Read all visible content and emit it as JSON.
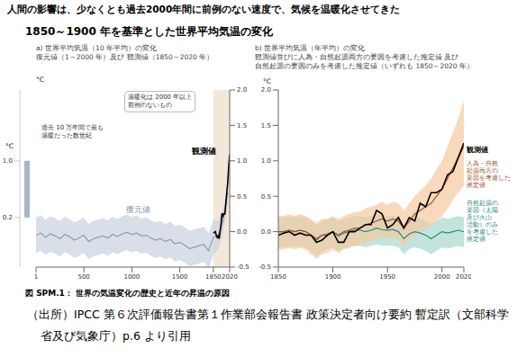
{
  "title": "人間の影響は、少なくとも過去2000年間に前例のない速度で、気候を温暖化させてきた",
  "subtitle": "1850～1900 年を基準とした世界平均気温の変化",
  "caption": "図 SPM.1： 世界の気温変化の歴史と近年の昇温の原因",
  "source": "（出所）IPCC 第６次評価報告書第１作業部会報告書 政策決定者向け要約 暫定訳（文部科学省及び気象庁）p.6 より引用",
  "chart_data": [
    {
      "type": "line",
      "title": "a) 世界平均気温（10 年平均）の変化",
      "subtitle": "復元値（1～2000 年）及び 観測値（1850～2020 年）",
      "y_label": "°C",
      "xlim": [
        1,
        2020
      ],
      "xticks": [
        1,
        500,
        1000,
        1500,
        1850,
        2020
      ],
      "ylim": [
        -0.5,
        2
      ],
      "yticks": [
        -0.5,
        {
          "value": 0,
          "label": "0.0"
        },
        0.5,
        {
          "value": 1,
          "label": "1.0"
        },
        1.5,
        {
          "value": 2,
          "label": "2.0"
        }
      ],
      "grid": false,
      "shaded_range": [
        1850,
        2020
      ],
      "series": [
        {
          "name": "復元値",
          "color": "#8c9db3",
          "band_color": "#c9d2de",
          "x": [
            1,
            50,
            100,
            150,
            200,
            250,
            300,
            350,
            400,
            450,
            500,
            550,
            600,
            650,
            700,
            750,
            800,
            850,
            900,
            950,
            1000,
            1050,
            1100,
            1150,
            1200,
            1250,
            1300,
            1350,
            1400,
            1450,
            1500,
            1550,
            1600,
            1650,
            1700,
            1750,
            1800,
            1850,
            1900,
            1950,
            2000
          ],
          "values": [
            -0.05,
            -0.02,
            -0.08,
            -0.03,
            -0.06,
            -0.1,
            -0.04,
            -0.07,
            -0.12,
            -0.09,
            -0.05,
            -0.14,
            -0.1,
            -0.08,
            -0.06,
            -0.09,
            -0.04,
            -0.07,
            -0.03,
            -0.01,
            -0.04,
            -0.02,
            -0.06,
            -0.05,
            -0.09,
            -0.12,
            -0.1,
            -0.14,
            -0.11,
            -0.17,
            -0.15,
            -0.19,
            -0.24,
            -0.22,
            -0.2,
            -0.18,
            -0.27,
            -0.08,
            -0.05,
            0.15,
            0.55
          ],
          "lower": [
            -0.3,
            -0.27,
            -0.33,
            -0.28,
            -0.31,
            -0.35,
            -0.29,
            -0.32,
            -0.37,
            -0.34,
            -0.3,
            -0.39,
            -0.35,
            -0.33,
            -0.31,
            -0.34,
            -0.29,
            -0.32,
            -0.28,
            -0.26,
            -0.29,
            -0.27,
            -0.31,
            -0.3,
            -0.34,
            -0.37,
            -0.35,
            -0.39,
            -0.36,
            -0.42,
            -0.4,
            -0.44,
            -0.49,
            -0.47,
            -0.45,
            -0.43,
            -0.52,
            -0.33,
            -0.25,
            -0.02,
            0.4
          ],
          "upper": [
            0.2,
            0.23,
            0.17,
            0.22,
            0.19,
            0.15,
            0.21,
            0.18,
            0.13,
            0.16,
            0.2,
            0.11,
            0.15,
            0.17,
            0.19,
            0.16,
            0.21,
            0.18,
            0.22,
            0.24,
            0.21,
            0.23,
            0.19,
            0.2,
            0.16,
            0.13,
            0.15,
            0.11,
            0.14,
            0.08,
            0.1,
            0.06,
            0.01,
            0.03,
            0.05,
            0.07,
            -0.02,
            0.17,
            0.15,
            0.32,
            0.7
          ]
        },
        {
          "name": "観測値",
          "color": "#000000",
          "x": [
            1850,
            1860,
            1870,
            1880,
            1890,
            1900,
            1910,
            1920,
            1930,
            1940,
            1950,
            1960,
            1970,
            1980,
            1990,
            2000,
            2010,
            2020
          ],
          "values": [
            -0.02,
            -0.01,
            0,
            -0.05,
            -0.08,
            -0.06,
            -0.1,
            0,
            0.1,
            0.26,
            0.22,
            0.25,
            0.25,
            0.4,
            0.55,
            0.7,
            0.92,
            1.09
          ]
        }
      ],
      "annotations": [
        {
          "text": "温暖化は 2000 年以上\n前例のないもの"
        },
        {
          "text": "過去 10 万年間で最も\n温暖だった数世紀"
        }
      ],
      "side_bar": {
        "label": "°C",
        "range": [
          0.2,
          1
        ],
        "ticks": [
          0.2,
          {
            "value": 1,
            "label": "1.0"
          }
        ],
        "color": "#a9b6c8"
      }
    },
    {
      "type": "line",
      "title": "b) 世界平均気温（年平均）の変化",
      "subtitle": "観測値並びに人為・自然起源両方の要因を考慮した推定値 及び\n自然起源の要因のみを考慮した推定値（いずれも 1850～2020 年）",
      "y_label": "°C",
      "xlim": [
        1850,
        2020
      ],
      "xticks": [
        1850,
        1900,
        1950,
        2000,
        2020
      ],
      "ylim": [
        -0.5,
        2
      ],
      "yticks": [
        -0.5,
        {
          "value": 0,
          "label": "0.0"
        },
        0.5,
        {
          "value": 1,
          "label": "1.0"
        },
        1.5,
        {
          "value": 2,
          "label": "2.0"
        }
      ],
      "grid": false,
      "x": [
        1850,
        1855,
        1860,
        1865,
        1870,
        1875,
        1880,
        1885,
        1890,
        1895,
        1900,
        1905,
        1910,
        1915,
        1920,
        1925,
        1930,
        1935,
        1940,
        1945,
        1950,
        1955,
        1960,
        1965,
        1970,
        1975,
        1980,
        1985,
        1990,
        1995,
        2000,
        2005,
        2010,
        2015,
        2020
      ],
      "series": [
        {
          "name": "自然起源の\n要因（太陽\n及び火山\n活動）のみ\nを考慮した\n推定値",
          "color": "#2a8c7c",
          "band_color": "#a8d8cf",
          "values": [
            0,
            0,
            0.02,
            0,
            0.02,
            0,
            -0.05,
            -0.12,
            -0.05,
            -0.03,
            0,
            -0.06,
            -0.02,
            0,
            0.02,
            0.02,
            0,
            0.02,
            0.05,
            0.03,
            0.02,
            0.03,
            0,
            -0.1,
            -0.03,
            0,
            -0.02,
            -0.05,
            -0.1,
            -0.05,
            0,
            -0.02,
            0,
            0.02,
            0
          ],
          "lower": [
            -0.22,
            -0.22,
            -0.2,
            -0.22,
            -0.2,
            -0.22,
            -0.28,
            -0.35,
            -0.28,
            -0.25,
            -0.22,
            -0.28,
            -0.24,
            -0.22,
            -0.2,
            -0.2,
            -0.22,
            -0.2,
            -0.18,
            -0.2,
            -0.2,
            -0.2,
            -0.22,
            -0.32,
            -0.25,
            -0.22,
            -0.24,
            -0.27,
            -0.32,
            -0.27,
            -0.22,
            -0.24,
            -0.22,
            -0.2,
            -0.22
          ],
          "upper": [
            0.2,
            0.2,
            0.22,
            0.2,
            0.22,
            0.2,
            0.15,
            0.08,
            0.15,
            0.17,
            0.2,
            0.14,
            0.18,
            0.2,
            0.22,
            0.22,
            0.2,
            0.22,
            0.25,
            0.23,
            0.22,
            0.23,
            0.2,
            0.1,
            0.17,
            0.2,
            0.18,
            0.15,
            0.1,
            0.15,
            0.2,
            0.18,
            0.2,
            0.22,
            0.2
          ]
        },
        {
          "name": "人為・自然\n起源両方の\n要因を考慮した\n推定値",
          "color": "#a0522d",
          "band_color": "#f5c9a0",
          "values": [
            0,
            0,
            0.02,
            0,
            0.02,
            0,
            -0.05,
            -0.1,
            -0.05,
            -0.05,
            0,
            -0.05,
            0,
            0.02,
            0.05,
            0.05,
            0.1,
            0.12,
            0.15,
            0.18,
            0.15,
            0.18,
            0.15,
            0.05,
            0.15,
            0.25,
            0.3,
            0.35,
            0.4,
            0.5,
            0.6,
            0.75,
            0.9,
            1.05,
            1.2
          ],
          "lower": [
            -0.25,
            -0.25,
            -0.23,
            -0.25,
            -0.23,
            -0.25,
            -0.32,
            -0.38,
            -0.32,
            -0.3,
            -0.25,
            -0.3,
            -0.25,
            -0.23,
            -0.2,
            -0.2,
            -0.15,
            -0.13,
            -0.1,
            -0.07,
            -0.1,
            -0.07,
            -0.12,
            -0.22,
            -0.12,
            -0.05,
            0,
            0.05,
            0.08,
            0.15,
            0.22,
            0.32,
            0.45,
            0.55,
            0.65
          ],
          "upper": [
            0.22,
            0.22,
            0.25,
            0.22,
            0.25,
            0.22,
            0.18,
            0.12,
            0.18,
            0.18,
            0.22,
            0.18,
            0.22,
            0.25,
            0.28,
            0.28,
            0.33,
            0.35,
            0.38,
            0.42,
            0.38,
            0.42,
            0.4,
            0.3,
            0.4,
            0.5,
            0.58,
            0.65,
            0.75,
            0.88,
            1,
            1.2,
            1.4,
            1.6,
            1.85
          ]
        },
        {
          "name": "観測値",
          "color": "#000000",
          "values": [
            -0.05,
            -0.02,
            0,
            -0.05,
            -0.02,
            -0.05,
            -0.05,
            -0.15,
            -0.12,
            -0.05,
            0,
            -0.15,
            -0.15,
            0,
            0,
            0.05,
            0.1,
            0.1,
            0.3,
            0.25,
            0.05,
            0.1,
            0.2,
            0.05,
            0.2,
            0.15,
            0.4,
            0.35,
            0.55,
            0.55,
            0.6,
            0.8,
            0.85,
            1.05,
            1.25
          ]
        }
      ]
    }
  ]
}
